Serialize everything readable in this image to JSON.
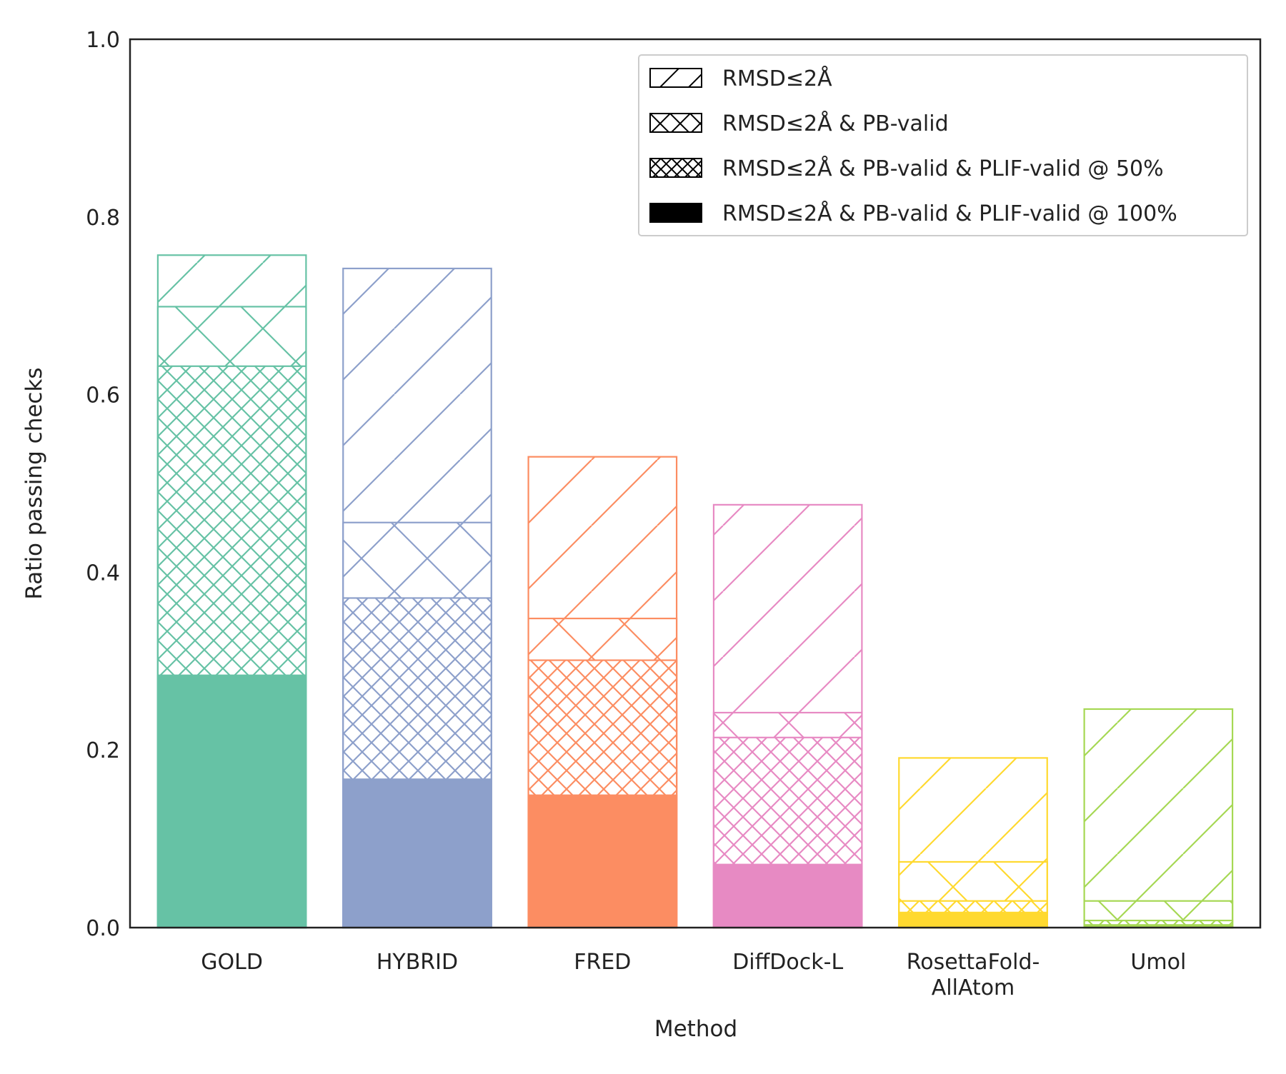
{
  "chart_data": {
    "type": "bar",
    "stacked_overlay": true,
    "title": "",
    "xlabel": "Method",
    "ylabel": "Ratio passing checks",
    "ylim": [
      0,
      1.0
    ],
    "yticks": [
      0.0,
      0.2,
      0.4,
      0.6,
      0.8,
      1.0
    ],
    "ytick_labels": [
      "0.0",
      "0.2",
      "0.4",
      "0.6",
      "0.8",
      "1.0"
    ],
    "grid": false,
    "legend_position": "top-right",
    "categories": [
      {
        "label_lines": [
          "GOLD"
        ],
        "color": "#66c2a5"
      },
      {
        "label_lines": [
          "HYBRID"
        ],
        "color": "#8da0cb"
      },
      {
        "label_lines": [
          "FRED"
        ],
        "color": "#fc8d62"
      },
      {
        "label_lines": [
          "DiffDock-L"
        ],
        "color": "#e78ac3"
      },
      {
        "label_lines": [
          "RosettaFold-",
          "AllAtom"
        ],
        "color": "#ffd92f"
      },
      {
        "label_lines": [
          "Umol"
        ],
        "color": "#a6d854"
      }
    ],
    "series": [
      {
        "name": "RMSD≤2Å",
        "hatch": "diagonal",
        "values": [
          0.757,
          0.742,
          0.53,
          0.476,
          0.191,
          0.246
        ]
      },
      {
        "name": "RMSD≤2Å & PB-valid",
        "hatch": "cross",
        "values": [
          0.699,
          0.456,
          0.348,
          0.242,
          0.074,
          0.03
        ]
      },
      {
        "name": "RMSD≤2Å & PB-valid & PLIF-valid @ 50%",
        "hatch": "dense-cross",
        "values": [
          0.632,
          0.371,
          0.301,
          0.214,
          0.03,
          0.008
        ]
      },
      {
        "name": "RMSD≤2Å & PB-valid & PLIF-valid @ 100%",
        "hatch": "solid",
        "values": [
          0.284,
          0.167,
          0.149,
          0.071,
          0.017,
          0.003
        ]
      }
    ]
  }
}
